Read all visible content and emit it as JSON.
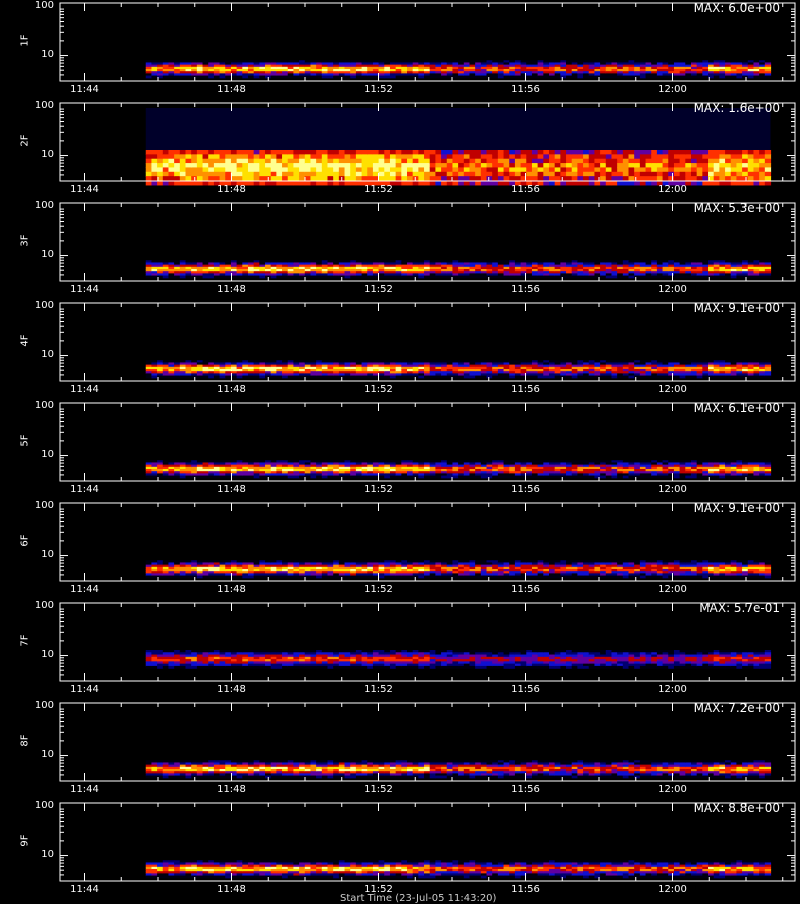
{
  "chart_data": [
    {
      "type": "heatmap",
      "ylabel": "1F",
      "max_label": "MAX: 6.0e+00",
      "yticks": [
        "100",
        "10"
      ],
      "xticks": [
        "11:44",
        "11:48",
        "11:52",
        "11:56",
        "12:00"
      ],
      "data_start": "11:45:40",
      "data_end": "12:02:40",
      "band_y": [
        4,
        7
      ],
      "intensity": "high"
    },
    {
      "type": "heatmap",
      "ylabel": "2F",
      "max_label": "MAX: 1.6e+00",
      "yticks": [
        "100",
        "10"
      ],
      "xticks": [
        "11:44",
        "11:48",
        "11:52",
        "11:56",
        "12:00"
      ],
      "data_start": "11:45:40",
      "data_end": "12:02:40",
      "band_y": [
        3,
        12
      ],
      "intensity": "wide"
    },
    {
      "type": "heatmap",
      "ylabel": "3F",
      "max_label": "MAX: 5.3e+00",
      "yticks": [
        "100",
        "10"
      ],
      "xticks": [
        "11:44",
        "11:48",
        "11:52",
        "11:56",
        "12:00"
      ],
      "data_start": "11:45:40",
      "data_end": "12:02:40",
      "band_y": [
        4,
        7
      ],
      "intensity": "high"
    },
    {
      "type": "heatmap",
      "ylabel": "4F",
      "max_label": "MAX: 9.1e+00",
      "yticks": [
        "100",
        "10"
      ],
      "xticks": [
        "11:44",
        "11:48",
        "11:52",
        "11:56",
        "12:00"
      ],
      "data_start": "11:45:40",
      "data_end": "12:02:40",
      "band_y": [
        4,
        7
      ],
      "intensity": "high"
    },
    {
      "type": "heatmap",
      "ylabel": "5F",
      "max_label": "MAX: 6.1e+00",
      "yticks": [
        "100",
        "10"
      ],
      "xticks": [
        "11:44",
        "11:48",
        "11:52",
        "11:56",
        "12:00"
      ],
      "data_start": "11:45:40",
      "data_end": "12:02:40",
      "band_y": [
        4,
        7
      ],
      "intensity": "high"
    },
    {
      "type": "heatmap",
      "ylabel": "6F",
      "max_label": "MAX: 9.1e+00",
      "yticks": [
        "100",
        "10"
      ],
      "xticks": [
        "11:44",
        "11:48",
        "11:52",
        "11:56",
        "12:00"
      ],
      "data_start": "11:45:40",
      "data_end": "12:02:40",
      "band_y": [
        4,
        7
      ],
      "intensity": "high"
    },
    {
      "type": "heatmap",
      "ylabel": "7F",
      "max_label": "MAX: 5.7e-01",
      "yticks": [
        "100",
        "10"
      ],
      "xticks": [
        "11:44",
        "11:48",
        "11:52",
        "11:56",
        "12:00"
      ],
      "data_start": "11:45:40",
      "data_end": "12:02:40",
      "band_y": [
        6,
        12
      ],
      "intensity": "low"
    },
    {
      "type": "heatmap",
      "ylabel": "8F",
      "max_label": "MAX: 7.2e+00",
      "yticks": [
        "100",
        "10"
      ],
      "xticks": [
        "11:44",
        "11:48",
        "11:52",
        "11:56",
        "12:00"
      ],
      "data_start": "11:45:40",
      "data_end": "12:02:40",
      "band_y": [
        4,
        7
      ],
      "intensity": "high"
    },
    {
      "type": "heatmap",
      "ylabel": "9F",
      "max_label": "MAX: 8.8e+00",
      "yticks": [
        "100",
        "10"
      ],
      "xticks": [
        "11:44",
        "11:48",
        "11:52",
        "11:56",
        "12:00"
      ],
      "data_start": "11:45:40",
      "data_end": "12:02:40",
      "band_y": [
        4,
        7
      ],
      "intensity": "high"
    }
  ],
  "footer": {
    "xaxis_title": "Start Time (23-Jul-05 11:43:20)"
  }
}
